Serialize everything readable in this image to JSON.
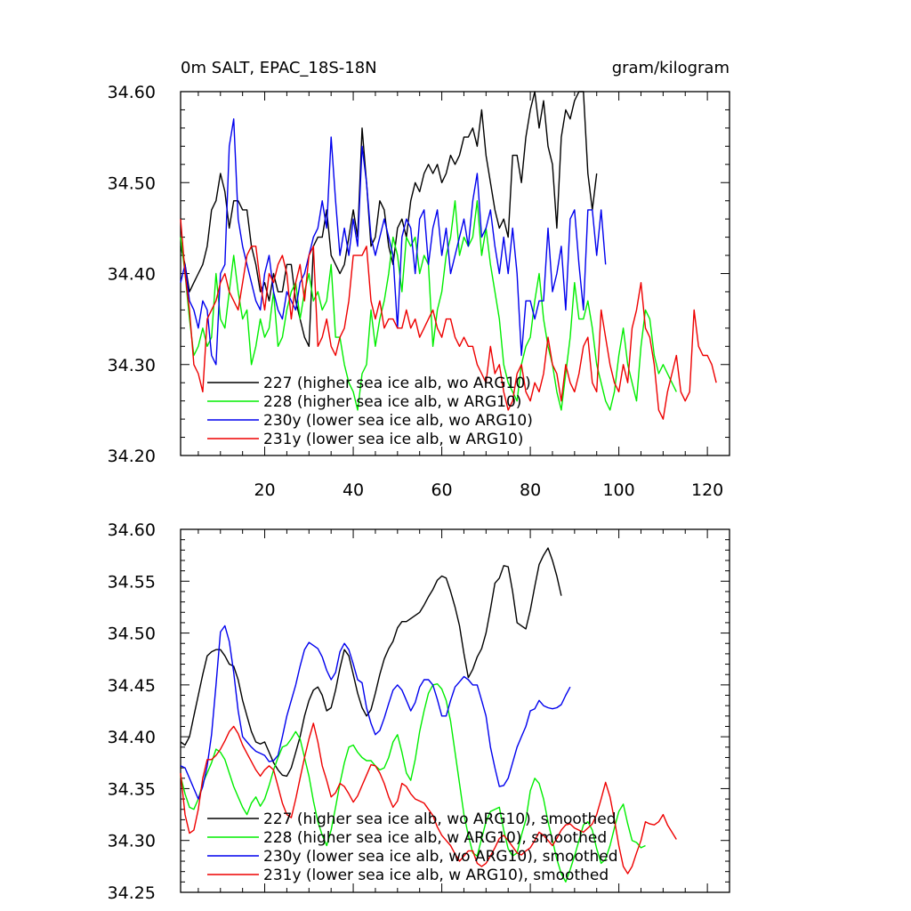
{
  "colors": {
    "227": "#000000",
    "228": "#00ee00",
    "230y": "#0000ee",
    "231y": "#ee0000"
  },
  "header": {
    "title": "0m SALT, EPAC_18S-18N",
    "units": "gram/kilogram"
  },
  "chart_data": [
    {
      "type": "line",
      "title": "0m SALT, EPAC_18S-18N",
      "units": "gram/kilogram",
      "xlim": [
        1,
        125
      ],
      "ylim": [
        34.2,
        34.6
      ],
      "xticks": [
        20,
        40,
        60,
        80,
        100,
        120
      ],
      "yticks": [
        34.2,
        34.3,
        34.4,
        34.5,
        34.6
      ],
      "ytick_labels": [
        "34.20",
        "34.30",
        "34.40",
        "34.50",
        "34.60"
      ],
      "show_xtick_labels": true,
      "series": [
        {
          "key": "227",
          "name": "227 (higher sea ice alb, wo ARG10)",
          "values": [
            34.43,
            34.41,
            34.38,
            34.39,
            34.4,
            34.41,
            34.43,
            34.47,
            34.48,
            34.51,
            34.49,
            34.45,
            34.48,
            34.48,
            34.47,
            34.47,
            34.43,
            34.41,
            34.38,
            34.39,
            34.37,
            34.4,
            34.38,
            34.38,
            34.41,
            34.41,
            34.37,
            34.35,
            34.33,
            34.32,
            34.43,
            34.44,
            34.44,
            34.47,
            34.42,
            34.41,
            34.4,
            34.41,
            34.44,
            34.47,
            34.44,
            34.56,
            34.5,
            34.43,
            34.44,
            34.48,
            34.47,
            34.43,
            34.41,
            34.45,
            34.46,
            34.44,
            34.48,
            34.5,
            34.49,
            34.51,
            34.52,
            34.51,
            34.52,
            34.5,
            34.51,
            34.53,
            34.52,
            34.53,
            34.55,
            34.55,
            34.56,
            34.54,
            34.58,
            34.53,
            34.5,
            34.47,
            34.45,
            34.46,
            34.44,
            34.53,
            34.53,
            34.5,
            34.55,
            34.58,
            34.6,
            34.56,
            34.59,
            34.54,
            34.52,
            34.45,
            34.55,
            34.58,
            34.57,
            34.59,
            34.6,
            34.6,
            34.51,
            34.47,
            34.51
          ]
        },
        {
          "key": "228",
          "name": "228 (higher sea ice alb, w ARG10)",
          "values": [
            34.44,
            34.4,
            34.35,
            34.31,
            34.32,
            34.34,
            34.32,
            34.33,
            34.4,
            34.35,
            34.34,
            34.38,
            34.42,
            34.38,
            34.35,
            34.36,
            34.3,
            34.32,
            34.35,
            34.33,
            34.34,
            34.38,
            34.32,
            34.33,
            34.36,
            34.38,
            34.39,
            34.35,
            34.38,
            34.4,
            34.37,
            34.38,
            34.36,
            34.37,
            34.41,
            34.33,
            34.33,
            34.3,
            34.28,
            34.27,
            34.25,
            34.29,
            34.3,
            34.36,
            34.32,
            34.35,
            34.37,
            34.4,
            34.44,
            34.42,
            34.38,
            34.44,
            34.43,
            34.44,
            34.4,
            34.42,
            34.41,
            34.32,
            34.36,
            34.38,
            34.42,
            34.44,
            34.48,
            34.42,
            34.44,
            34.43,
            34.44,
            34.48,
            34.42,
            34.45,
            34.41,
            34.38,
            34.35,
            34.3,
            34.28,
            34.27,
            34.26,
            34.3,
            34.32,
            34.33,
            34.37,
            34.4,
            34.35,
            34.32,
            34.3,
            34.27,
            34.25,
            34.29,
            34.33,
            34.39,
            34.35,
            34.35,
            34.37,
            34.34,
            34.3,
            34.28,
            34.26,
            34.25,
            34.27,
            34.31,
            34.34,
            34.3,
            34.28,
            34.26,
            34.32,
            34.36,
            34.35,
            34.31,
            34.29,
            34.3,
            34.29,
            34.28,
            34.27
          ]
        },
        {
          "key": "230y",
          "name": "230y (lower sea ice alb, wo ARG10)",
          "values": [
            34.39,
            34.41,
            34.37,
            34.36,
            34.34,
            34.37,
            34.36,
            34.31,
            34.3,
            34.4,
            34.41,
            34.54,
            34.57,
            34.46,
            34.43,
            34.41,
            34.39,
            34.37,
            34.36,
            34.4,
            34.42,
            34.38,
            34.36,
            34.35,
            34.38,
            34.37,
            34.36,
            34.39,
            34.4,
            34.42,
            34.44,
            34.45,
            34.48,
            34.45,
            34.55,
            34.48,
            34.42,
            34.45,
            34.42,
            34.46,
            34.43,
            34.54,
            34.5,
            34.44,
            34.42,
            34.44,
            34.46,
            34.44,
            34.42,
            34.34,
            34.44,
            34.46,
            34.45,
            34.4,
            34.46,
            34.47,
            34.41,
            34.45,
            34.47,
            34.42,
            34.45,
            34.4,
            34.42,
            34.44,
            34.46,
            34.43,
            34.48,
            34.51,
            34.44,
            34.45,
            34.47,
            34.43,
            34.4,
            34.44,
            34.4,
            34.45,
            34.4,
            34.31,
            34.37,
            34.37,
            34.35,
            34.37,
            34.37,
            34.45,
            34.38,
            34.4,
            34.43,
            34.36,
            34.46,
            34.47,
            34.41,
            34.36,
            34.47,
            34.47,
            34.42,
            34.47,
            34.41
          ]
        },
        {
          "key": "231y",
          "name": "231y (lower sea ice alb, w ARG10)",
          "values": [
            34.46,
            34.4,
            34.36,
            34.3,
            34.29,
            34.27,
            34.35,
            34.36,
            34.37,
            34.39,
            34.4,
            34.38,
            34.37,
            34.36,
            34.39,
            34.42,
            34.43,
            34.43,
            34.39,
            34.36,
            34.4,
            34.39,
            34.41,
            34.42,
            34.4,
            34.35,
            34.39,
            34.41,
            34.37,
            34.42,
            34.43,
            34.32,
            34.33,
            34.35,
            34.32,
            34.31,
            34.33,
            34.34,
            34.37,
            34.42,
            34.42,
            34.42,
            34.43,
            34.37,
            34.35,
            34.37,
            34.34,
            34.35,
            34.35,
            34.34,
            34.34,
            34.36,
            34.34,
            34.35,
            34.33,
            34.34,
            34.35,
            34.36,
            34.34,
            34.33,
            34.35,
            34.35,
            34.33,
            34.32,
            34.33,
            34.32,
            34.32,
            34.3,
            34.29,
            34.28,
            34.32,
            34.29,
            34.3,
            34.27,
            34.25,
            34.26,
            34.29,
            34.3,
            34.27,
            34.26,
            34.28,
            34.27,
            34.29,
            34.33,
            34.3,
            34.29,
            34.26,
            34.3,
            34.28,
            34.27,
            34.29,
            34.32,
            34.33,
            34.28,
            34.27,
            34.36,
            34.33,
            34.3,
            34.28,
            34.27,
            34.3,
            34.28,
            34.34,
            34.36,
            34.39,
            34.34,
            34.33,
            34.3,
            34.25,
            34.24,
            34.27,
            34.29,
            34.31,
            34.27,
            34.26,
            34.27,
            34.36,
            34.32,
            34.31,
            34.31,
            34.3,
            34.28
          ]
        }
      ]
    },
    {
      "type": "line",
      "title": "",
      "xlim": [
        1,
        125
      ],
      "ylim": [
        34.25,
        34.6
      ],
      "xticks": [
        20,
        40,
        60,
        80,
        100,
        120
      ],
      "yticks": [
        34.25,
        34.3,
        34.35,
        34.4,
        34.45,
        34.5,
        34.55,
        34.6
      ],
      "ytick_labels": [
        "34.25",
        "34.30",
        "34.35",
        "34.40",
        "34.45",
        "34.50",
        "34.55",
        "34.60"
      ],
      "show_xtick_labels": false,
      "series": [
        {
          "key": "227",
          "name": "227 (higher sea ice alb, wo ARG10), smoothed",
          "values": [
            34.395,
            34.392,
            34.4,
            34.42,
            34.44,
            34.46,
            34.478,
            34.482,
            34.484,
            34.484,
            34.478,
            34.47,
            34.468,
            34.455,
            34.435,
            34.42,
            34.405,
            34.395,
            34.393,
            34.395,
            34.385,
            34.375,
            34.368,
            34.363,
            34.362,
            34.37,
            34.385,
            34.4,
            34.42,
            34.435,
            34.445,
            34.448,
            34.44,
            34.425,
            34.428,
            34.445,
            34.466,
            34.484,
            34.478,
            34.46,
            34.442,
            34.428,
            34.42,
            34.426,
            34.442,
            34.46,
            34.475,
            34.485,
            34.492,
            34.505,
            34.511,
            34.511,
            34.514,
            34.517,
            34.52,
            34.527,
            34.535,
            34.542,
            34.551,
            34.555,
            34.553,
            34.54,
            34.525,
            34.507,
            34.48,
            34.457,
            34.465,
            34.477,
            34.485,
            34.5,
            34.523,
            34.548,
            34.553,
            34.565,
            34.564,
            34.54,
            34.51,
            34.507,
            34.504,
            34.522,
            34.545,
            34.566,
            34.575,
            34.582,
            34.57,
            34.555,
            34.536
          ]
        },
        {
          "key": "228",
          "name": "228 (higher sea ice alb, w ARG10), smoothed",
          "values": [
            34.362,
            34.345,
            34.332,
            34.33,
            34.34,
            34.355,
            34.365,
            34.375,
            34.388,
            34.385,
            34.378,
            34.365,
            34.352,
            34.342,
            34.332,
            34.325,
            34.336,
            34.342,
            34.333,
            34.34,
            34.353,
            34.368,
            34.38,
            34.39,
            34.392,
            34.398,
            34.405,
            34.398,
            34.38,
            34.362,
            34.338,
            34.318,
            34.305,
            34.295,
            34.31,
            34.332,
            34.355,
            34.375,
            34.39,
            34.392,
            34.385,
            34.38,
            34.377,
            34.377,
            34.372,
            34.368,
            34.37,
            34.38,
            34.395,
            34.402,
            34.385,
            34.365,
            34.358,
            34.378,
            34.405,
            34.425,
            34.442,
            34.45,
            34.451,
            34.446,
            34.435,
            34.415,
            34.385,
            34.355,
            34.325,
            34.305,
            34.288,
            34.285,
            34.302,
            34.318,
            34.328,
            34.33,
            34.332,
            34.31,
            34.292,
            34.285,
            34.288,
            34.305,
            34.32,
            34.348,
            34.36,
            34.355,
            34.34,
            34.318,
            34.3,
            34.282,
            34.268,
            34.26,
            34.272,
            34.285,
            34.3,
            34.315,
            34.318,
            34.31,
            34.292,
            34.278,
            34.282,
            34.295,
            34.312,
            34.328,
            34.335,
            34.316,
            34.3,
            34.298,
            34.293,
            34.295
          ]
        },
        {
          "key": "230y",
          "name": "230y (lower sea ice alb, wo ARG10), smoothed",
          "values": [
            34.372,
            34.37,
            34.36,
            34.35,
            34.34,
            34.352,
            34.372,
            34.402,
            34.45,
            34.501,
            34.507,
            34.492,
            34.462,
            34.425,
            34.4,
            34.395,
            34.39,
            34.386,
            34.384,
            34.382,
            34.376,
            34.377,
            34.382,
            34.4,
            34.42,
            34.435,
            34.45,
            34.468,
            34.484,
            34.491,
            34.488,
            34.485,
            34.477,
            34.464,
            34.455,
            34.462,
            34.482,
            34.49,
            34.484,
            34.47,
            34.455,
            34.452,
            34.428,
            34.413,
            34.402,
            34.406,
            34.418,
            34.432,
            34.445,
            34.45,
            34.445,
            34.435,
            34.425,
            34.433,
            34.448,
            34.455,
            34.455,
            34.45,
            34.436,
            34.42,
            34.42,
            34.435,
            34.448,
            34.453,
            34.458,
            34.455,
            34.45,
            34.45,
            34.435,
            34.42,
            34.39,
            34.37,
            34.352,
            34.353,
            34.36,
            34.375,
            34.39,
            34.4,
            34.41,
            34.425,
            34.427,
            34.435,
            34.43,
            34.428,
            34.427,
            34.428,
            34.431,
            34.44,
            34.448
          ]
        },
        {
          "key": "231y",
          "name": "231y (lower sea ice alb, w ARG10), smoothed",
          "values": [
            34.365,
            34.325,
            34.307,
            34.31,
            34.33,
            34.36,
            34.378,
            34.378,
            34.382,
            34.388,
            34.396,
            34.405,
            34.41,
            34.403,
            34.392,
            34.384,
            34.376,
            34.368,
            34.362,
            34.368,
            34.372,
            34.368,
            34.352,
            34.336,
            34.325,
            34.322,
            34.34,
            34.36,
            34.38,
            34.398,
            34.413,
            34.395,
            34.372,
            34.358,
            34.342,
            34.346,
            34.355,
            34.352,
            34.345,
            34.337,
            34.343,
            34.353,
            34.363,
            34.373,
            34.372,
            34.365,
            34.355,
            34.342,
            34.332,
            34.338,
            34.355,
            34.352,
            34.345,
            34.34,
            34.338,
            34.336,
            34.33,
            34.324,
            34.313,
            34.305,
            34.3,
            34.295,
            34.287,
            34.28,
            34.285,
            34.29,
            34.29,
            34.278,
            34.275,
            34.278,
            34.285,
            34.293,
            34.302,
            34.305,
            34.3,
            34.294,
            34.288,
            34.286,
            34.29,
            34.293,
            34.3,
            34.308,
            34.305,
            34.3,
            34.295,
            34.302,
            34.31,
            34.315,
            34.316,
            34.312,
            34.31,
            34.308,
            34.312,
            34.316,
            34.325,
            34.34,
            34.356,
            34.342,
            34.32,
            34.295,
            34.275,
            34.268,
            34.275,
            34.288,
            34.3,
            34.318,
            34.316,
            34.315,
            34.318,
            34.325,
            34.315,
            34.308,
            34.301
          ]
        }
      ]
    }
  ]
}
